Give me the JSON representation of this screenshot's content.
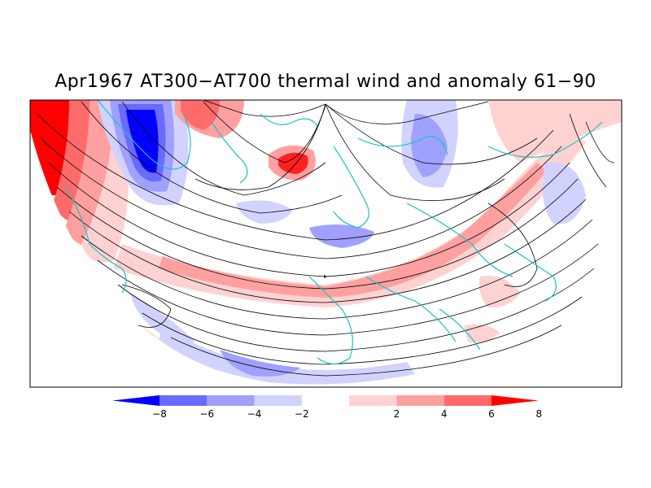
{
  "title": "Apr1967 AT300−AT700 thermal wind and anomaly 61−90",
  "colorbar": {
    "tick_labels": [
      "−8",
      "−6",
      "−4",
      "−2",
      "2",
      "4",
      "6",
      "8"
    ],
    "colors": [
      "#0000ff",
      "#6a6aff",
      "#a0a0ff",
      "#d2d2ff",
      "#ffffff",
      "#ffd2d2",
      "#ffa0a0",
      "#ff6a6a",
      "#ff0000"
    ]
  },
  "colors": {
    "coastline": "#19c3c3",
    "streamline": "#000000",
    "frame": "#000000"
  }
}
